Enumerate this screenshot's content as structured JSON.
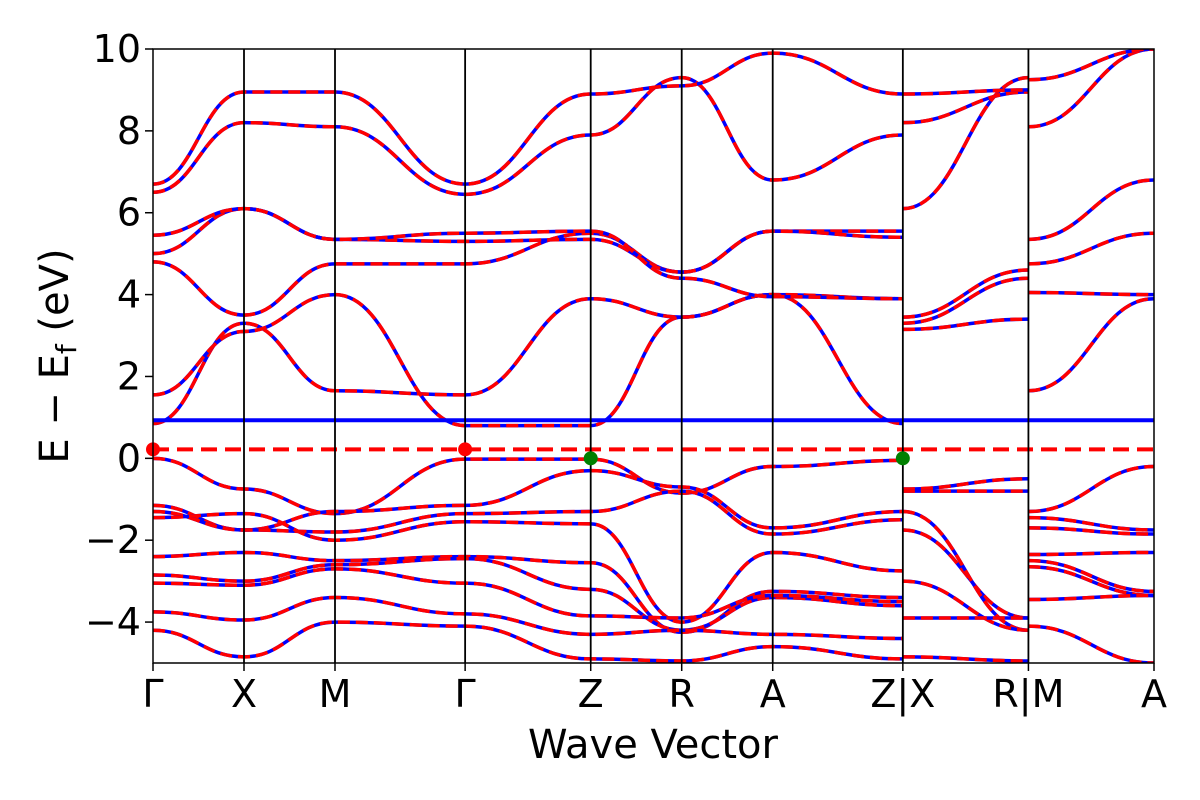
{
  "chart_data": {
    "type": "line",
    "title": "",
    "xlabel": "Wave Vector",
    "ylabel": {
      "main": "E − E",
      "sub": "f",
      "unit": " (eV)"
    },
    "ylim": [
      -5,
      10
    ],
    "yticks": [
      -4,
      -2,
      0,
      2,
      4,
      6,
      8,
      10
    ],
    "ytick_labels": [
      "−4",
      "−2",
      "0",
      "2",
      "4",
      "6",
      "8",
      "10"
    ],
    "xlim": [
      0,
      11
    ],
    "kpoints": [
      {
        "label": "Γ",
        "x": 0
      },
      {
        "label": "X",
        "x": 1
      },
      {
        "label": "M",
        "x": 2
      },
      {
        "label": "Γ",
        "x": 3.43
      },
      {
        "label": "Z",
        "x": 4.81
      },
      {
        "label": "R",
        "x": 5.81
      },
      {
        "label": "A",
        "x": 6.81
      },
      {
        "label": "Z|X",
        "x": 8.24
      },
      {
        "label": "R|M",
        "x": 9.62
      },
      {
        "label": "A",
        "x": 11
      }
    ],
    "grid": false,
    "colors": {
      "blue": "#0000ff",
      "red": "#ff0000",
      "green": "#008000",
      "line": "#000000"
    },
    "reference_lines": [
      {
        "name": "blue-level",
        "y": 0.93,
        "color": "#0000ff",
        "style": "solid"
      },
      {
        "name": "red-level",
        "y": 0.22,
        "color": "#ff0000",
        "style": "dashed"
      }
    ],
    "markers": [
      {
        "x": 0,
        "y": 0.22,
        "color": "#ff0000"
      },
      {
        "x": 3.43,
        "y": 0.22,
        "color": "#ff0000"
      },
      {
        "x": 4.81,
        "y": 0.0,
        "color": "#008000"
      },
      {
        "x": 8.24,
        "y": 0.0,
        "color": "#008000"
      }
    ],
    "bands": [
      {
        "x": [
          0,
          1,
          2,
          3.43,
          4.81,
          5.81,
          6.81,
          8.24
        ],
        "y": [
          0.85,
          3.3,
          1.65,
          1.55,
          3.9,
          3.45,
          4.0,
          3.9
        ]
      },
      {
        "x": [
          0,
          1,
          2,
          3.43,
          4.81,
          5.81,
          6.81,
          8.24
        ],
        "y": [
          1.55,
          3.1,
          4.0,
          0.8,
          0.8,
          3.45,
          4.0,
          0.85
        ]
      },
      {
        "x": [
          0,
          1,
          2,
          3.43,
          4.81,
          5.81,
          6.81,
          8.24
        ],
        "y": [
          4.8,
          3.5,
          4.75,
          4.75,
          5.5,
          4.55,
          5.55,
          5.55
        ]
      },
      {
        "x": [
          0,
          1,
          2,
          3.43,
          4.81,
          5.81,
          6.81,
          8.24
        ],
        "y": [
          5.0,
          6.1,
          5.35,
          5.3,
          5.35,
          4.55,
          5.55,
          5.4
        ]
      },
      {
        "x": [
          0,
          1,
          2,
          3.43,
          4.81,
          5.81,
          6.81,
          8.24
        ],
        "y": [
          5.45,
          6.1,
          5.35,
          5.5,
          5.55,
          4.4,
          3.95,
          3.9
        ]
      },
      {
        "x": [
          0,
          1,
          2,
          3.43,
          4.81,
          5.81,
          6.81,
          8.24
        ],
        "y": [
          6.5,
          8.2,
          8.1,
          6.45,
          7.9,
          9.3,
          6.8,
          7.9
        ]
      },
      {
        "x": [
          0,
          1,
          2,
          3.43,
          4.81,
          5.81,
          6.81,
          8.24
        ],
        "y": [
          6.7,
          8.95,
          8.95,
          6.7,
          8.9,
          9.1,
          9.9,
          8.9
        ]
      },
      {
        "x": [
          0,
          1,
          2,
          3.43,
          4.81,
          5.81,
          6.81,
          8.24
        ],
        "y": [
          0.0,
          -0.75,
          -1.35,
          -0.02,
          -0.02,
          -0.85,
          -0.2,
          -0.05
        ]
      },
      {
        "x": [
          0,
          1,
          2,
          3.43,
          4.81,
          5.81,
          6.81,
          8.24
        ],
        "y": [
          -1.15,
          -1.75,
          -1.3,
          -1.15,
          -0.3,
          -0.7,
          -1.7,
          -1.3
        ]
      },
      {
        "x": [
          0,
          1,
          2,
          3.43,
          4.81,
          5.81,
          6.81,
          8.24
        ],
        "y": [
          -1.3,
          -1.75,
          -1.8,
          -1.35,
          -1.3,
          -0.8,
          -1.85,
          -1.5
        ]
      },
      {
        "x": [
          0,
          1,
          2,
          3.43,
          4.81,
          5.81,
          6.81,
          8.24
        ],
        "y": [
          -1.45,
          -1.35,
          -2.0,
          -1.55,
          -1.6,
          -4.0,
          -2.3,
          -2.75
        ]
      },
      {
        "x": [
          0,
          1,
          2,
          3.43,
          4.81,
          5.81,
          6.81,
          8.24
        ],
        "y": [
          -2.4,
          -2.3,
          -2.5,
          -2.4,
          -2.55,
          -4.25,
          -3.25,
          -3.4
        ]
      },
      {
        "x": [
          0,
          1,
          2,
          3.43,
          4.81,
          5.81,
          6.81,
          8.24
        ],
        "y": [
          -2.85,
          -3.0,
          -2.6,
          -2.45,
          -3.2,
          -4.2,
          -3.4,
          -3.6
        ]
      },
      {
        "x": [
          0,
          1,
          2,
          3.43,
          4.81,
          5.81,
          6.81,
          8.24
        ],
        "y": [
          -3.05,
          -3.1,
          -2.7,
          -3.05,
          -3.85,
          -3.9,
          -3.35,
          -3.5
        ]
      },
      {
        "x": [
          0,
          1,
          2,
          3.43,
          4.81,
          5.81,
          6.81,
          8.24
        ],
        "y": [
          -3.75,
          -3.95,
          -3.4,
          -3.8,
          -4.3,
          -4.2,
          -4.3,
          -4.4
        ]
      },
      {
        "x": [
          0,
          1,
          2,
          3.43,
          4.81,
          5.81,
          6.81,
          8.24
        ],
        "y": [
          -4.2,
          -4.85,
          -4.0,
          -4.1,
          -4.9,
          -4.95,
          -4.6,
          -4.9
        ]
      },
      {
        "x": [
          8.24,
          9.62
        ],
        "y": [
          3.45,
          4.6
        ]
      },
      {
        "x": [
          8.24,
          9.62
        ],
        "y": [
          3.3,
          4.4
        ]
      },
      {
        "x": [
          8.24,
          9.62
        ],
        "y": [
          3.15,
          3.4
        ]
      },
      {
        "x": [
          8.24,
          9.62
        ],
        "y": [
          6.1,
          9.3
        ]
      },
      {
        "x": [
          8.24,
          9.62
        ],
        "y": [
          8.2,
          8.95
        ]
      },
      {
        "x": [
          8.24,
          9.62
        ],
        "y": [
          8.9,
          9.0
        ]
      },
      {
        "x": [
          8.24,
          9.62
        ],
        "y": [
          -0.75,
          -0.5
        ]
      },
      {
        "x": [
          8.24,
          9.62
        ],
        "y": [
          -0.8,
          -0.8
        ]
      },
      {
        "x": [
          8.24,
          9.62
        ],
        "y": [
          -1.75,
          -3.9
        ]
      },
      {
        "x": [
          8.24,
          9.62
        ],
        "y": [
          -1.3,
          -4.2
        ]
      },
      {
        "x": [
          8.24,
          9.62
        ],
        "y": [
          -3.0,
          -4.2
        ]
      },
      {
        "x": [
          8.24,
          9.62
        ],
        "y": [
          -3.9,
          -3.9
        ]
      },
      {
        "x": [
          8.24,
          9.62
        ],
        "y": [
          -4.85,
          -4.95
        ]
      },
      {
        "x": [
          9.62,
          11
        ],
        "y": [
          1.65,
          3.9
        ]
      },
      {
        "x": [
          9.62,
          11
        ],
        "y": [
          4.05,
          4.0
        ]
      },
      {
        "x": [
          9.62,
          11
        ],
        "y": [
          4.75,
          5.5
        ]
      },
      {
        "x": [
          9.62,
          11
        ],
        "y": [
          5.35,
          6.8
        ]
      },
      {
        "x": [
          9.62,
          11
        ],
        "y": [
          8.1,
          10.0
        ]
      },
      {
        "x": [
          9.62,
          11
        ],
        "y": [
          9.25,
          10.0
        ]
      },
      {
        "x": [
          9.62,
          11
        ],
        "y": [
          -1.3,
          -0.2
        ]
      },
      {
        "x": [
          9.62,
          11
        ],
        "y": [
          -1.45,
          -1.75
        ]
      },
      {
        "x": [
          9.62,
          11
        ],
        "y": [
          -1.7,
          -1.85
        ]
      },
      {
        "x": [
          9.62,
          11
        ],
        "y": [
          -2.35,
          -2.3
        ]
      },
      {
        "x": [
          9.62,
          11
        ],
        "y": [
          -2.5,
          -3.25
        ]
      },
      {
        "x": [
          9.62,
          11
        ],
        "y": [
          -2.65,
          -3.35
        ]
      },
      {
        "x": [
          9.62,
          11
        ],
        "y": [
          -3.45,
          -3.35
        ]
      },
      {
        "x": [
          9.62,
          11
        ],
        "y": [
          -4.1,
          -5.0
        ]
      }
    ]
  }
}
